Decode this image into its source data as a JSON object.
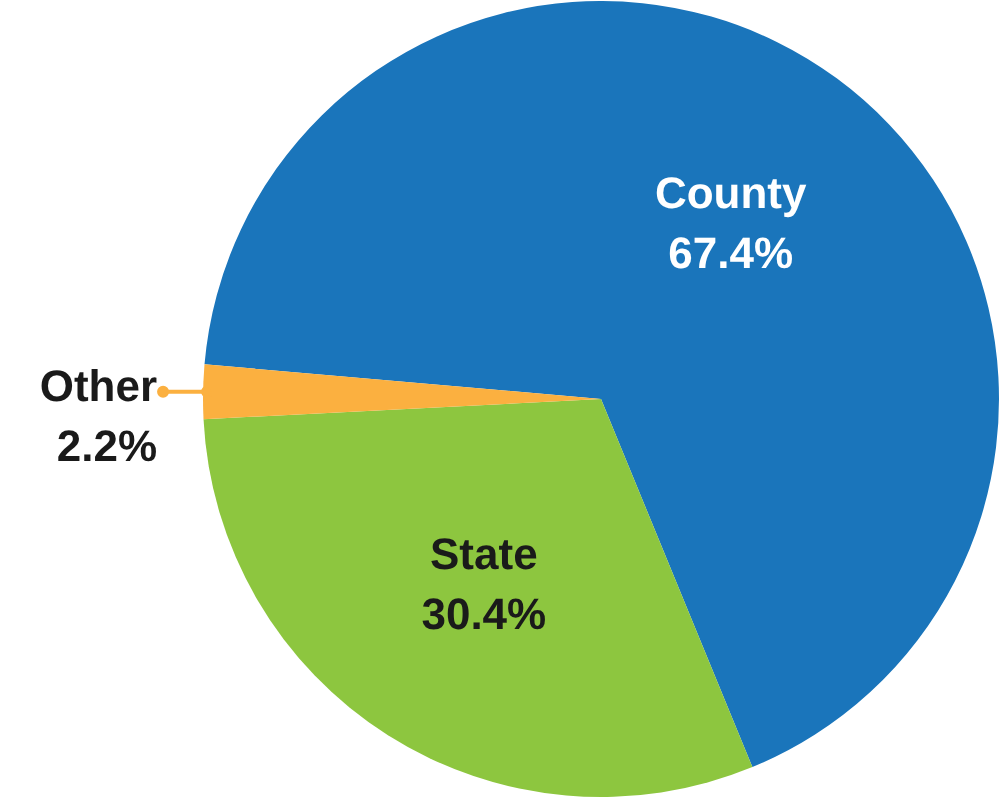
{
  "chart_data": {
    "type": "pie",
    "categories": [
      "County",
      "State",
      "Other"
    ],
    "values": [
      67.4,
      30.4,
      2.2
    ],
    "colors": [
      "#1a75bb",
      "#8dc63f",
      "#fbb040"
    ],
    "value_labels": [
      "67.4%",
      "30.4%",
      "2.2%"
    ]
  }
}
